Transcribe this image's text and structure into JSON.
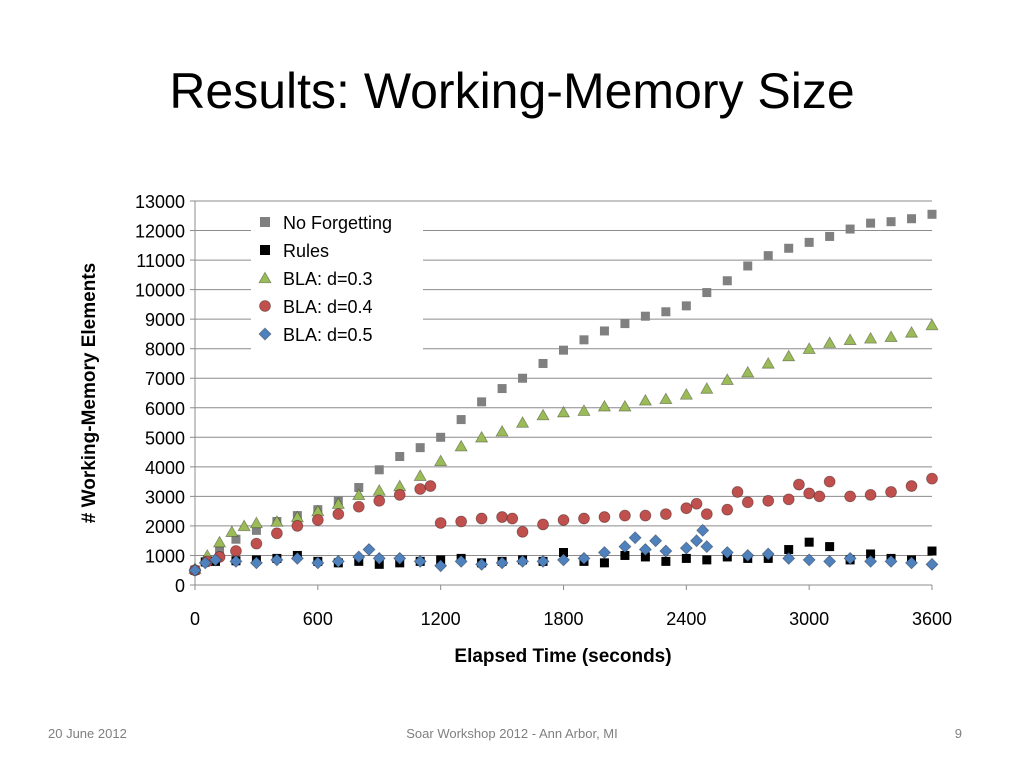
{
  "slide": {
    "title": "Results: Working-Memory Size",
    "footer_date": "20 June 2012",
    "footer_event": "Soar Workshop 2012 - Ann Arbor, MI",
    "page_number": "9"
  },
  "chart_data": {
    "type": "scatter",
    "title": "",
    "xlabel": "Elapsed Time (seconds)",
    "ylabel": "# Working-Memory Elements",
    "xlim": [
      0,
      3600
    ],
    "ylim": [
      0,
      13000
    ],
    "xticks": [
      0,
      600,
      1200,
      1800,
      2400,
      3000,
      3600
    ],
    "yticks": [
      0,
      1000,
      2000,
      3000,
      4000,
      5000,
      6000,
      7000,
      8000,
      9000,
      10000,
      11000,
      12000,
      13000
    ],
    "grid": true,
    "legend_position": "top-left",
    "series": [
      {
        "name": "No Forgetting",
        "marker": "square",
        "color": "#808080",
        "points": [
          [
            0,
            500
          ],
          [
            60,
            850
          ],
          [
            120,
            1200
          ],
          [
            200,
            1550
          ],
          [
            300,
            1850
          ],
          [
            400,
            2150
          ],
          [
            500,
            2350
          ],
          [
            600,
            2550
          ],
          [
            700,
            2850
          ],
          [
            800,
            3300
          ],
          [
            900,
            3900
          ],
          [
            1000,
            4350
          ],
          [
            1100,
            4650
          ],
          [
            1200,
            5000
          ],
          [
            1300,
            5600
          ],
          [
            1400,
            6200
          ],
          [
            1500,
            6650
          ],
          [
            1600,
            7000
          ],
          [
            1700,
            7500
          ],
          [
            1800,
            7950
          ],
          [
            1900,
            8300
          ],
          [
            2000,
            8600
          ],
          [
            2100,
            8850
          ],
          [
            2200,
            9100
          ],
          [
            2300,
            9250
          ],
          [
            2400,
            9450
          ],
          [
            2500,
            9900
          ],
          [
            2600,
            10300
          ],
          [
            2700,
            10800
          ],
          [
            2800,
            11150
          ],
          [
            2900,
            11400
          ],
          [
            3000,
            11600
          ],
          [
            3100,
            11800
          ],
          [
            3200,
            12050
          ],
          [
            3300,
            12250
          ],
          [
            3400,
            12300
          ],
          [
            3500,
            12400
          ],
          [
            3600,
            12550
          ]
        ]
      },
      {
        "name": "Rules",
        "marker": "square",
        "color": "#000000",
        "points": [
          [
            0,
            500
          ],
          [
            50,
            780
          ],
          [
            100,
            800
          ],
          [
            200,
            820
          ],
          [
            300,
            850
          ],
          [
            400,
            900
          ],
          [
            500,
            1000
          ],
          [
            600,
            800
          ],
          [
            700,
            750
          ],
          [
            800,
            800
          ],
          [
            900,
            700
          ],
          [
            1000,
            750
          ],
          [
            1100,
            800
          ],
          [
            1200,
            850
          ],
          [
            1300,
            900
          ],
          [
            1400,
            750
          ],
          [
            1500,
            800
          ],
          [
            1600,
            850
          ],
          [
            1700,
            800
          ],
          [
            1800,
            1100
          ],
          [
            1900,
            800
          ],
          [
            2000,
            750
          ],
          [
            2100,
            1000
          ],
          [
            2200,
            950
          ],
          [
            2300,
            800
          ],
          [
            2400,
            900
          ],
          [
            2500,
            850
          ],
          [
            2600,
            950
          ],
          [
            2700,
            900
          ],
          [
            2800,
            900
          ],
          [
            2900,
            1200
          ],
          [
            3000,
            1450
          ],
          [
            3100,
            1300
          ],
          [
            3200,
            850
          ],
          [
            3300,
            1050
          ],
          [
            3400,
            900
          ],
          [
            3500,
            850
          ],
          [
            3600,
            1150
          ]
        ]
      },
      {
        "name": "BLA: d=0.3",
        "marker": "triangle",
        "color": "#9BBB59",
        "points": [
          [
            0,
            550
          ],
          [
            60,
            1000
          ],
          [
            120,
            1450
          ],
          [
            180,
            1800
          ],
          [
            240,
            2000
          ],
          [
            300,
            2100
          ],
          [
            400,
            2150
          ],
          [
            500,
            2300
          ],
          [
            600,
            2500
          ],
          [
            700,
            2750
          ],
          [
            800,
            3050
          ],
          [
            900,
            3200
          ],
          [
            1000,
            3350
          ],
          [
            1100,
            3700
          ],
          [
            1200,
            4200
          ],
          [
            1300,
            4700
          ],
          [
            1400,
            5000
          ],
          [
            1500,
            5200
          ],
          [
            1600,
            5500
          ],
          [
            1700,
            5750
          ],
          [
            1800,
            5850
          ],
          [
            1900,
            5900
          ],
          [
            2000,
            6050
          ],
          [
            2100,
            6050
          ],
          [
            2200,
            6250
          ],
          [
            2300,
            6300
          ],
          [
            2400,
            6450
          ],
          [
            2500,
            6650
          ],
          [
            2600,
            6950
          ],
          [
            2700,
            7200
          ],
          [
            2800,
            7500
          ],
          [
            2900,
            7750
          ],
          [
            3000,
            8000
          ],
          [
            3100,
            8200
          ],
          [
            3200,
            8300
          ],
          [
            3300,
            8350
          ],
          [
            3400,
            8400
          ],
          [
            3500,
            8550
          ],
          [
            3600,
            8800
          ]
        ]
      },
      {
        "name": "BLA: d=0.4",
        "marker": "circle",
        "color": "#C0504D",
        "points": [
          [
            0,
            500
          ],
          [
            60,
            800
          ],
          [
            120,
            950
          ],
          [
            200,
            1150
          ],
          [
            300,
            1400
          ],
          [
            400,
            1750
          ],
          [
            500,
            2000
          ],
          [
            600,
            2200
          ],
          [
            700,
            2400
          ],
          [
            800,
            2650
          ],
          [
            900,
            2850
          ],
          [
            1000,
            3050
          ],
          [
            1100,
            3250
          ],
          [
            1150,
            3350
          ],
          [
            1200,
            2100
          ],
          [
            1300,
            2150
          ],
          [
            1400,
            2250
          ],
          [
            1500,
            2300
          ],
          [
            1550,
            2250
          ],
          [
            1600,
            1800
          ],
          [
            1700,
            2050
          ],
          [
            1800,
            2200
          ],
          [
            1900,
            2250
          ],
          [
            2000,
            2300
          ],
          [
            2100,
            2350
          ],
          [
            2200,
            2350
          ],
          [
            2300,
            2400
          ],
          [
            2400,
            2600
          ],
          [
            2450,
            2750
          ],
          [
            2500,
            2400
          ],
          [
            2600,
            2550
          ],
          [
            2650,
            3150
          ],
          [
            2700,
            2800
          ],
          [
            2800,
            2850
          ],
          [
            2900,
            2900
          ],
          [
            2950,
            3400
          ],
          [
            3000,
            3100
          ],
          [
            3050,
            3000
          ],
          [
            3100,
            3500
          ],
          [
            3200,
            3000
          ],
          [
            3300,
            3050
          ],
          [
            3400,
            3150
          ],
          [
            3500,
            3350
          ],
          [
            3600,
            3600
          ]
        ]
      },
      {
        "name": "BLA: d=0.5",
        "marker": "diamond",
        "color": "#4F81BD",
        "points": [
          [
            0,
            500
          ],
          [
            50,
            750
          ],
          [
            100,
            850
          ],
          [
            200,
            800
          ],
          [
            300,
            750
          ],
          [
            400,
            850
          ],
          [
            500,
            900
          ],
          [
            600,
            750
          ],
          [
            700,
            800
          ],
          [
            800,
            950
          ],
          [
            850,
            1200
          ],
          [
            900,
            900
          ],
          [
            1000,
            900
          ],
          [
            1100,
            800
          ],
          [
            1200,
            650
          ],
          [
            1300,
            800
          ],
          [
            1400,
            700
          ],
          [
            1500,
            750
          ],
          [
            1600,
            800
          ],
          [
            1700,
            800
          ],
          [
            1800,
            850
          ],
          [
            1900,
            900
          ],
          [
            2000,
            1100
          ],
          [
            2100,
            1300
          ],
          [
            2150,
            1600
          ],
          [
            2200,
            1200
          ],
          [
            2250,
            1500
          ],
          [
            2300,
            1150
          ],
          [
            2400,
            1250
          ],
          [
            2450,
            1500
          ],
          [
            2480,
            1850
          ],
          [
            2500,
            1300
          ],
          [
            2600,
            1100
          ],
          [
            2700,
            1000
          ],
          [
            2800,
            1050
          ],
          [
            2900,
            900
          ],
          [
            3000,
            850
          ],
          [
            3100,
            800
          ],
          [
            3200,
            900
          ],
          [
            3300,
            800
          ],
          [
            3400,
            800
          ],
          [
            3500,
            750
          ],
          [
            3600,
            700
          ]
        ]
      }
    ]
  }
}
